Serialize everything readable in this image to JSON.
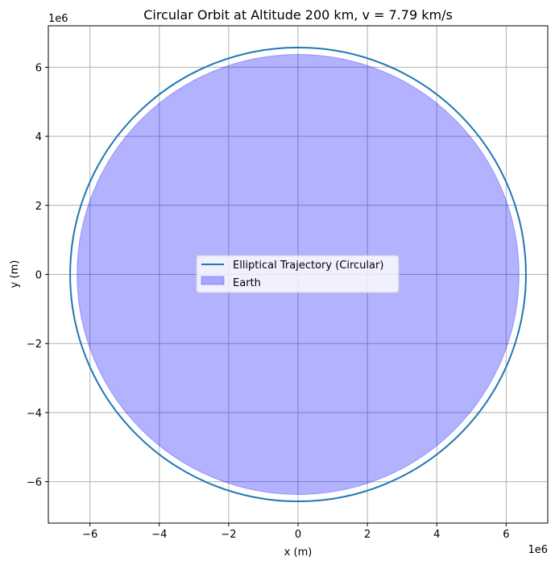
{
  "chart_data": {
    "type": "line",
    "title": "Circular Orbit at Altitude 200 km, v = 7.79 km/s",
    "xlabel": "x (m)",
    "ylabel": "y (m)",
    "x_offset_label": "1e6",
    "y_offset_label": "1e6",
    "xlim": [
      -7200000.0,
      7200000.0
    ],
    "ylim": [
      -7200000.0,
      7200000.0
    ],
    "xticks": [
      -6,
      -4,
      -2,
      0,
      2,
      4,
      6
    ],
    "yticks": [
      -6,
      -4,
      -2,
      0,
      2,
      4,
      6
    ],
    "xtick_labels": [
      "−6",
      "−4",
      "−2",
      "0",
      "2",
      "4",
      "6"
    ],
    "ytick_labels": [
      "−6",
      "−4",
      "−2",
      "0",
      "2",
      "4",
      "6"
    ],
    "grid": true,
    "legend_position": "center",
    "series": [
      {
        "name": "Elliptical Trajectory (Circular)",
        "kind": "circle-line",
        "radius": 6571000,
        "color": "#1f77b4"
      },
      {
        "name": "Earth",
        "kind": "circle-fill",
        "radius": 6371000,
        "color": "#0000ff",
        "alpha": 0.3
      }
    ]
  }
}
